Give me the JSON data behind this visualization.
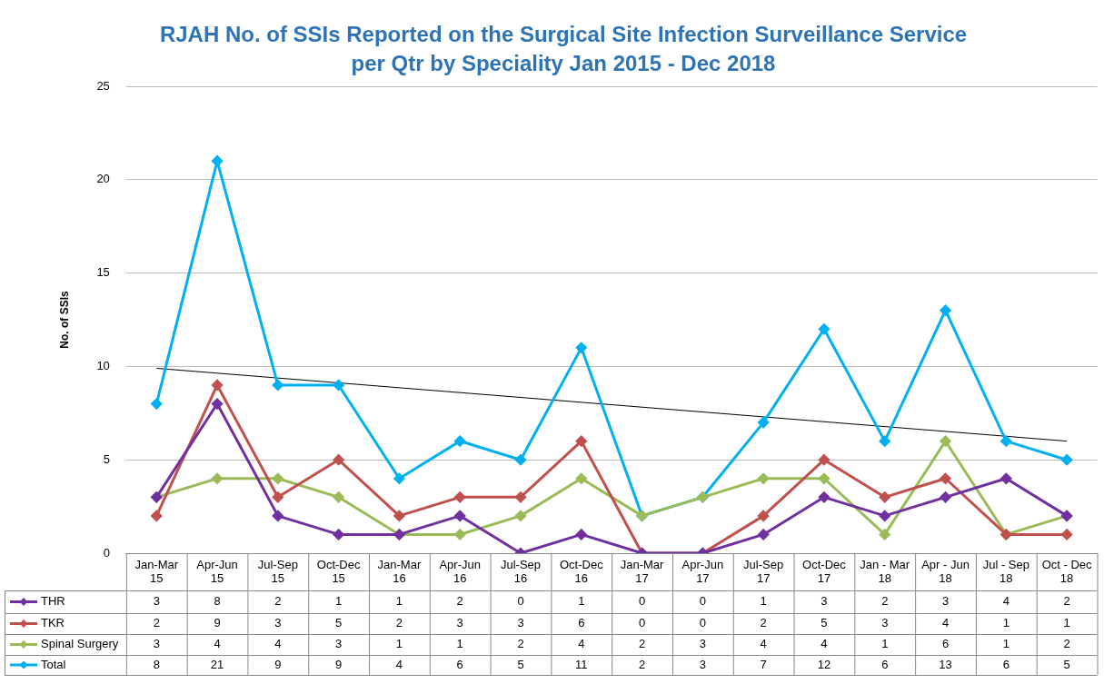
{
  "chart_data": {
    "type": "line",
    "title": "RJAH No. of SSIs Reported on the Surgical Site Infection Surveillance Service per Qtr by Speciality Jan 2015 - Dec 2018",
    "ylabel": "No. of SSIs",
    "categories": [
      "Jan-Mar 15",
      "Apr-Jun 15",
      "Jul-Sep 15",
      "Oct-Dec 15",
      "Jan-Mar 16",
      "Apr-Jun 16",
      "Jul-Sep 16",
      "Oct-Dec 16",
      "Jan-Mar 17",
      "Apr-Jun 17",
      "Jul-Sep 17",
      "Oct-Dec 17",
      "Jan - Mar 18",
      "Apr - Jun 18",
      "Jul - Sep 18",
      "Oct - Dec 18"
    ],
    "series": [
      {
        "name": "THR",
        "color": "#7030a0",
        "values": [
          3,
          8,
          2,
          1,
          1,
          2,
          0,
          1,
          0,
          0,
          1,
          3,
          2,
          3,
          4,
          2
        ],
        "value_labels": [
          "3",
          "8",
          "2",
          "1",
          "1",
          "2",
          "0",
          "1",
          "0",
          "0",
          "1",
          "3",
          "2",
          "3",
          "4",
          "2"
        ]
      },
      {
        "name": "TKR",
        "color": "#c0504d",
        "values": [
          2,
          9,
          3,
          5,
          2,
          3,
          3,
          6,
          0,
          0,
          2,
          5,
          3,
          4,
          1,
          1
        ],
        "value_labels": [
          "2",
          "9",
          "3",
          "5",
          "2",
          "3",
          "3",
          "6",
          "0",
          "0",
          "2",
          "5",
          "3",
          "4",
          "1",
          "1"
        ]
      },
      {
        "name": "Spinal Surgery",
        "color": "#9bbb59",
        "values": [
          3,
          4,
          4,
          3,
          1,
          1,
          2,
          4,
          2,
          3,
          4,
          4,
          1,
          6,
          1,
          2
        ],
        "value_labels": [
          "3",
          "4",
          "4",
          "3",
          "1",
          "1",
          "2",
          "4",
          "2",
          "3",
          "4",
          "4",
          "1",
          "6",
          "1",
          "2"
        ]
      },
      {
        "name": "Total",
        "color": "#00b0f0",
        "values": [
          8,
          21,
          9,
          9,
          4,
          6,
          5,
          11,
          2,
          3,
          7,
          12,
          6,
          13,
          6,
          5
        ],
        "value_labels": [
          "8",
          "21",
          "9",
          "9",
          "4",
          "6",
          "5",
          "11",
          "2",
          "3",
          "7",
          "12",
          "6",
          "13",
          "6",
          "5"
        ]
      },
      {
        "type": "line",
        "x": [
          "Jan-Mar 15",
          "Oct - Dec 18"
        ],
        "values": [
          9.9,
          6.0
        ],
        "color": "#000000",
        "marker": "none"
      }
    ],
    "ylim": [
      0,
      25
    ],
    "yticks": [
      0,
      5,
      10,
      15,
      20,
      25
    ],
    "grid": "y",
    "legend": "bottom",
    "marker": "diamond"
  }
}
